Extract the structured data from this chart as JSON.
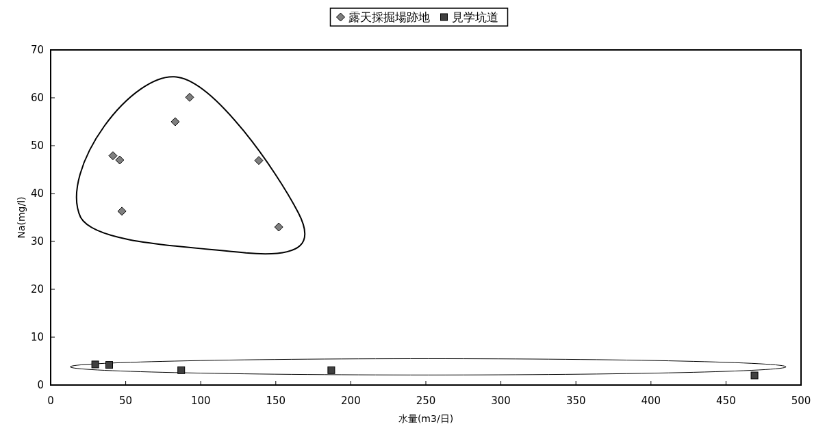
{
  "chart_data": {
    "type": "scatter",
    "xlabel": "水量(m3/日)",
    "ylabel": "Na(mg/l)",
    "xlim": [
      0,
      500
    ],
    "ylim": [
      0,
      70
    ],
    "xticks": [
      0,
      50,
      100,
      150,
      200,
      250,
      300,
      350,
      400,
      450,
      500
    ],
    "yticks": [
      0,
      10,
      20,
      30,
      40,
      50,
      60,
      70
    ],
    "grid": false,
    "legend": "top",
    "series": [
      {
        "name": "露天採掘場跡地",
        "color": "#7f7f7f",
        "marker": "diamond",
        "x": [
          92.6,
          83,
          41.5,
          46,
          138.7,
          47.5,
          152
        ],
        "values": [
          60.1,
          55,
          47.9,
          47,
          46.9,
          36.3,
          33
        ]
      },
      {
        "name": "見学坑道",
        "color": "#404040",
        "marker": "square",
        "x": [
          29.7,
          39,
          87,
          187,
          469
        ],
        "values": [
          4.3,
          4.2,
          3.1,
          3.1,
          2
        ]
      }
    ]
  }
}
